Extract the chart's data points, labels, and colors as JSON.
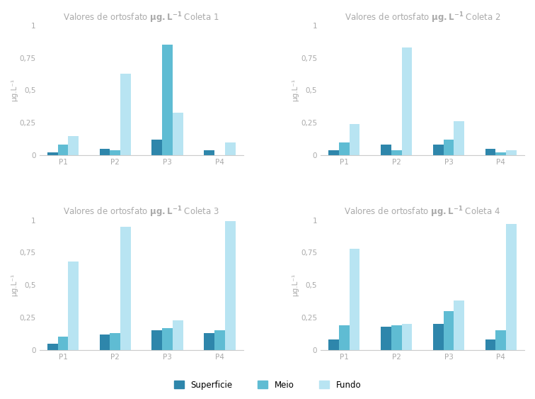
{
  "titles": [
    "Coleta 1",
    "Coleta 2",
    "Coleta 3",
    "Coleta 4"
  ],
  "categories": [
    "P1",
    "P2",
    "P3",
    "P4"
  ],
  "series_labels": [
    "Superficie",
    "Meio",
    "Fundo"
  ],
  "colors": [
    "#2e86ab",
    "#5fbcd3",
    "#b8e4f2"
  ],
  "data": [
    [
      [
        0.02,
        0.08,
        0.15
      ],
      [
        0.05,
        0.04,
        0.63
      ],
      [
        0.12,
        0.85,
        0.33
      ],
      [
        0.04,
        0.0,
        0.1
      ]
    ],
    [
      [
        0.04,
        0.1,
        0.24
      ],
      [
        0.08,
        0.04,
        0.83
      ],
      [
        0.08,
        0.12,
        0.26
      ],
      [
        0.05,
        0.02,
        0.04
      ]
    ],
    [
      [
        0.05,
        0.1,
        0.68
      ],
      [
        0.12,
        0.13,
        0.95
      ],
      [
        0.15,
        0.17,
        0.23
      ],
      [
        0.13,
        0.15,
        0.99
      ]
    ],
    [
      [
        0.08,
        0.19,
        0.78
      ],
      [
        0.18,
        0.19,
        0.2
      ],
      [
        0.2,
        0.3,
        0.38
      ],
      [
        0.08,
        0.15,
        0.97
      ]
    ]
  ],
  "ylim": [
    0,
    1
  ],
  "yticks": [
    0,
    0.25,
    0.5,
    0.75,
    1
  ],
  "ytick_labels": [
    "0",
    "0,25",
    "0,5",
    "0,75",
    "1"
  ],
  "ylabel": "μg.L⁻¹",
  "background_color": "#ffffff",
  "title_fontsize": 8.5,
  "axis_fontsize": 7.5,
  "legend_fontsize": 8.5,
  "title_prefix": "Valores de ortosfato ",
  "title_bold": "μg.L",
  "title_color": "#aaaaaa",
  "tick_color": "#aaaaaa",
  "spine_color": "#cccccc"
}
